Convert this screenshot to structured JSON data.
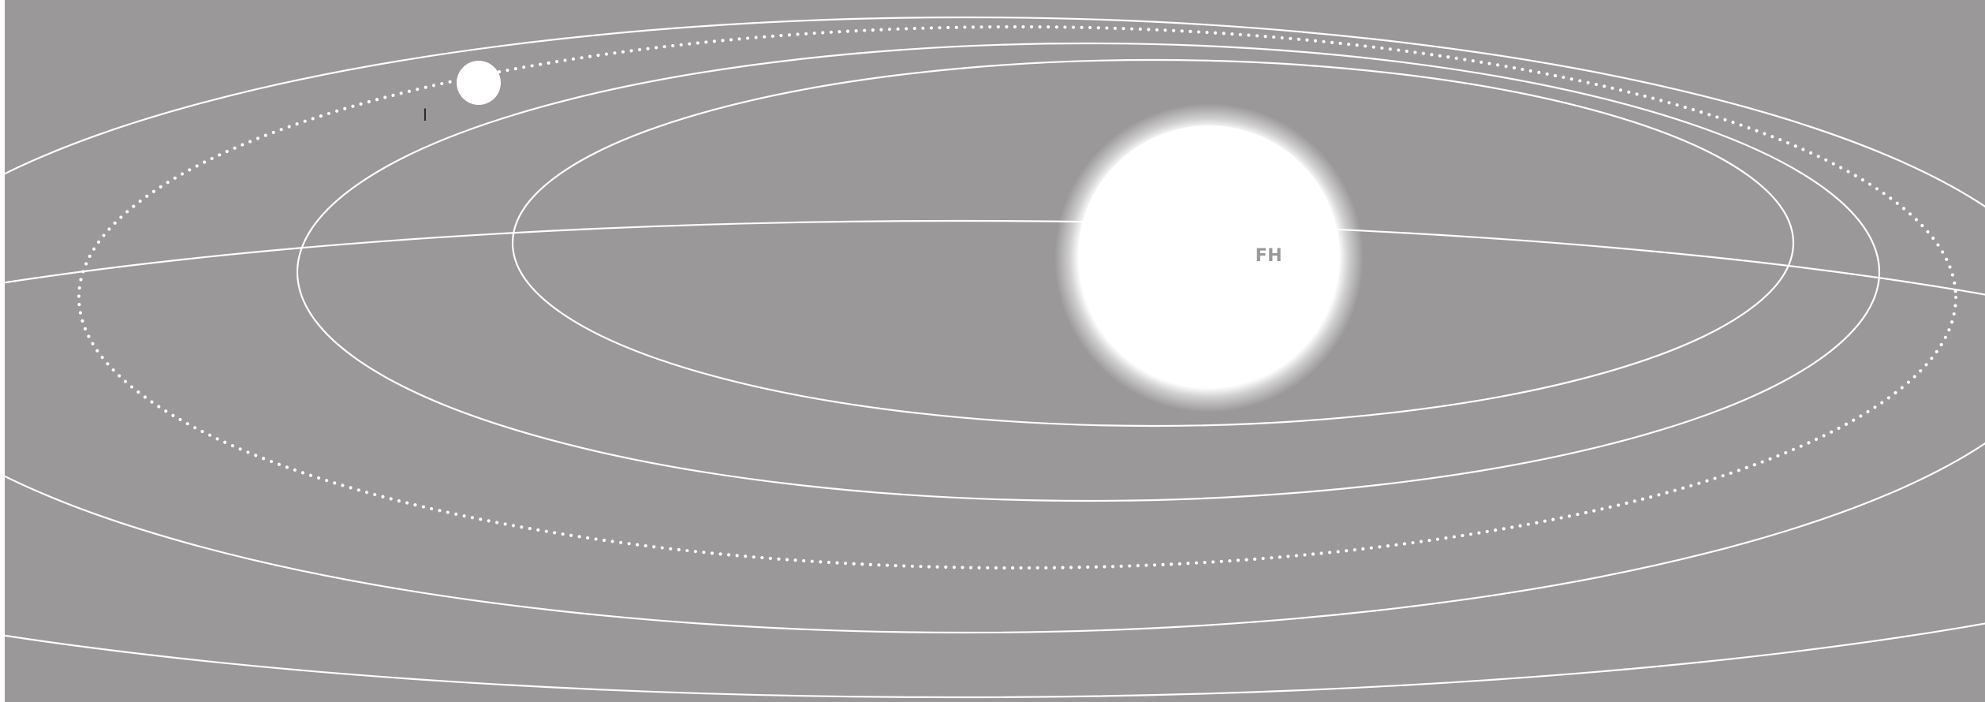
{
  "colors": {
    "background": "#9a9898",
    "orbit": "#ffffff",
    "star": "#ffffff",
    "star_glow": "#ffffff",
    "star_label": "#9a9898",
    "planet": "#ffffff",
    "planet_label": "#2a2a2a"
  },
  "star": {
    "label": "FH"
  },
  "planet": {
    "label": "I"
  },
  "orbits": [
    {
      "name": "orbit-1",
      "style": "solid"
    },
    {
      "name": "orbit-2",
      "style": "solid"
    },
    {
      "name": "orbit-3",
      "style": "dotted"
    },
    {
      "name": "orbit-4",
      "style": "solid"
    },
    {
      "name": "orbit-5",
      "style": "solid"
    }
  ]
}
